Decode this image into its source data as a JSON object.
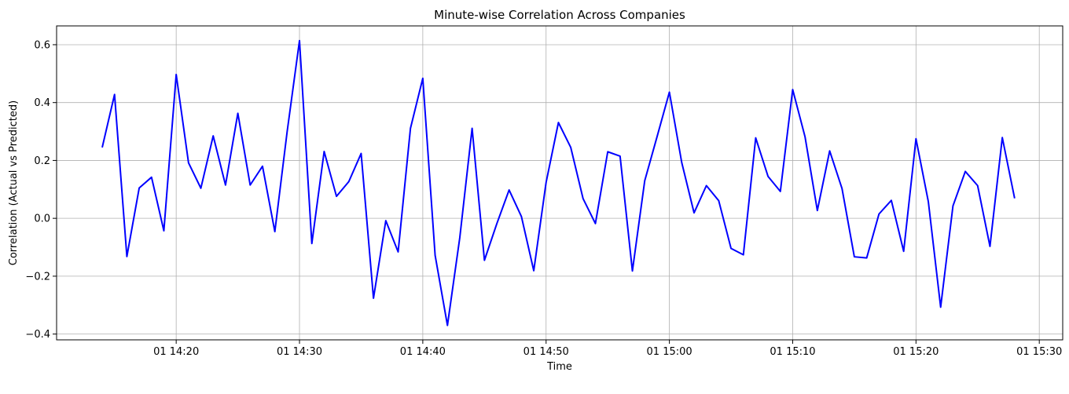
{
  "chart_data": {
    "type": "line",
    "title": "Minute-wise Correlation Across Companies",
    "xlabel": "Time",
    "ylabel": "Correlation (Actual vs Predicted)",
    "grid": true,
    "x_start_time": "14:14",
    "x_step_minutes": 1,
    "xlim": [
      "14:10.3",
      "15:31.9"
    ],
    "ylim": [
      -0.42,
      0.665
    ],
    "x_ticks": [
      "01 14:20",
      "01 14:30",
      "01 14:40",
      "01 14:50",
      "01 15:00",
      "01 15:10",
      "01 15:20",
      "01 15:30"
    ],
    "y_ticks": [
      "−0.4",
      "−0.2",
      "0.0",
      "0.2",
      "0.4",
      "0.6"
    ],
    "series": [
      {
        "color": "#0000ff",
        "values": [
          0.245,
          0.428,
          -0.132,
          0.105,
          0.142,
          -0.043,
          0.497,
          0.192,
          0.104,
          0.285,
          0.115,
          0.363,
          0.115,
          0.18,
          -0.046,
          0.3,
          0.614,
          -0.087,
          0.231,
          0.076,
          0.127,
          0.224,
          -0.276,
          -0.008,
          -0.116,
          0.311,
          0.484,
          -0.128,
          -0.37,
          -0.067,
          0.311,
          -0.145,
          -0.019,
          0.098,
          0.006,
          -0.181,
          0.124,
          0.331,
          0.245,
          0.068,
          -0.018,
          0.23,
          0.215,
          -0.182,
          0.13,
          0.282,
          0.436,
          0.193,
          0.019,
          0.113,
          0.061,
          -0.104,
          -0.126,
          0.278,
          0.145,
          0.093,
          0.445,
          0.282,
          0.027,
          0.233,
          0.103,
          -0.133,
          -0.137,
          0.015,
          0.062,
          -0.114,
          0.275,
          0.058,
          -0.307,
          0.043,
          0.162,
          0.113,
          -0.097,
          0.279,
          0.069
        ]
      }
    ]
  }
}
